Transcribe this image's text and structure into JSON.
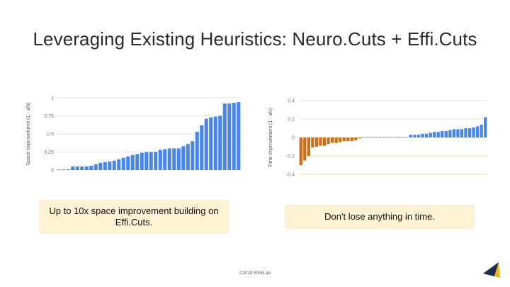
{
  "slide": {
    "title": "Leveraging Existing Heuristics: Neuro.Cuts + Effi.Cuts",
    "caption_left": "Up to 10x space improvement building on Effi.Cuts.",
    "caption_right": "Don't lose anything in time.",
    "footer": "©2018 RISELab"
  },
  "colors": {
    "blue_bar": "#4a86e8",
    "orange_bar": "#c8701e",
    "grid": "#dddddd",
    "caption_bg": "#fdf3d4",
    "guide_line": "#f1d27a"
  },
  "chart_data": [
    {
      "type": "bar",
      "ylabel": "Space Improvement (1 - a/b)",
      "ylim": [
        0,
        1
      ],
      "y_ticks": [
        "0",
        "0.25",
        "0.5",
        "0.75",
        "1"
      ],
      "grid": true,
      "values": [
        0,
        0,
        0.01,
        0.05,
        0.05,
        0.05,
        0.05,
        0.06,
        0.08,
        0.1,
        0.11,
        0.12,
        0.13,
        0.15,
        0.17,
        0.19,
        0.21,
        0.22,
        0.24,
        0.25,
        0.25,
        0.25,
        0.28,
        0.29,
        0.3,
        0.3,
        0.3,
        0.33,
        0.36,
        0.4,
        0.53,
        0.62,
        0.71,
        0.73,
        0.74,
        0.75,
        0.92,
        0.92,
        0.93,
        0.94
      ]
    },
    {
      "type": "bar",
      "ylabel": "Time Improvement (1 - a/c)",
      "ylim": [
        -0.4,
        0.4
      ],
      "y_ticks": [
        "0.4",
        "0.2",
        "0",
        "-0.2",
        "-0.4"
      ],
      "grid": true,
      "values": [
        -0.3,
        -0.25,
        -0.2,
        -0.11,
        -0.1,
        -0.09,
        -0.09,
        -0.07,
        -0.06,
        -0.06,
        -0.05,
        -0.04,
        -0.04,
        -0.04,
        -0.03,
        -0.01,
        0,
        0,
        0,
        0,
        0,
        0,
        0,
        0,
        0,
        0,
        0,
        0,
        0.03,
        0.03,
        0.03,
        0.04,
        0.04,
        0.05,
        0.06,
        0.06,
        0.07,
        0.07,
        0.08,
        0.09,
        0.09,
        0.09,
        0.1,
        0.1,
        0.11,
        0.12,
        0.14,
        0.22
      ]
    }
  ]
}
